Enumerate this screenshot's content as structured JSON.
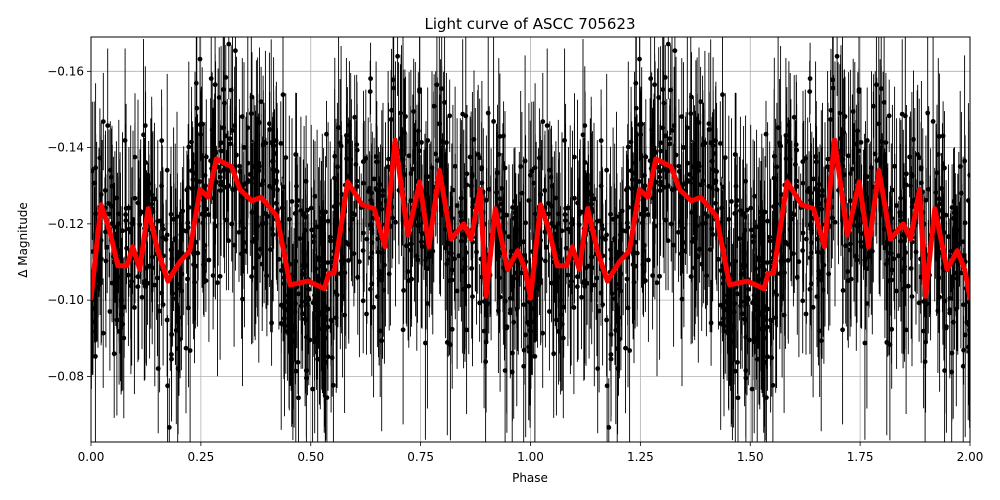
{
  "chart_data": {
    "type": "scatter",
    "title": "Light curve of ASCC 705623",
    "xlabel": "Phase",
    "ylabel": "Δ Magnitude",
    "xlim": [
      0.0,
      2.0
    ],
    "ylim": [
      -0.0628,
      -0.169
    ],
    "y_inverted": true,
    "grid": true,
    "legend": null,
    "xticks": [
      "0.00",
      "0.25",
      "0.50",
      "0.75",
      "1.00",
      "1.25",
      "1.50",
      "1.75",
      "2.00"
    ],
    "yticks": [
      "−0.16",
      "−0.14",
      "−0.12",
      "−0.10",
      "−0.08"
    ],
    "ytick_values": [
      -0.16,
      -0.14,
      -0.12,
      -0.1,
      -0.08
    ],
    "series": [
      {
        "name": "observations",
        "kind": "errorbar-scatter",
        "color": "#000000",
        "description": "Dense black points with vertical error bars filling roughly -0.065 to -0.17, folded twice over phase 0-2"
      },
      {
        "name": "smoothed model",
        "kind": "line",
        "color": "#ff0000",
        "linewidth": 5,
        "period_in_phase": 1.0,
        "x": [
          0.0,
          0.023,
          0.043,
          0.061,
          0.082,
          0.095,
          0.111,
          0.13,
          0.152,
          0.175,
          0.202,
          0.225,
          0.248,
          0.267,
          0.285,
          0.32,
          0.339,
          0.366,
          0.387,
          0.423,
          0.453,
          0.494,
          0.531,
          0.541,
          0.553,
          0.567,
          0.584,
          0.617,
          0.644,
          0.669,
          0.692,
          0.721,
          0.748,
          0.769,
          0.793,
          0.819,
          0.848,
          0.865,
          0.885,
          0.899,
          0.92,
          0.948,
          0.971,
          0.988,
          1.0
        ],
        "y": [
          -0.1005,
          -0.125,
          -0.118,
          -0.109,
          -0.109,
          -0.114,
          -0.108,
          -0.124,
          -0.113,
          -0.105,
          -0.11,
          -0.113,
          -0.129,
          -0.127,
          -0.137,
          -0.135,
          -0.129,
          -0.126,
          -0.127,
          -0.122,
          -0.104,
          -0.105,
          -0.103,
          -0.107,
          -0.107,
          -0.118,
          -0.131,
          -0.125,
          -0.124,
          -0.114,
          -0.142,
          -0.117,
          -0.131,
          -0.114,
          -0.134,
          -0.116,
          -0.12,
          -0.116,
          -0.129,
          -0.101,
          -0.124,
          -0.108,
          -0.113,
          -0.108,
          -0.1005
        ]
      }
    ]
  }
}
